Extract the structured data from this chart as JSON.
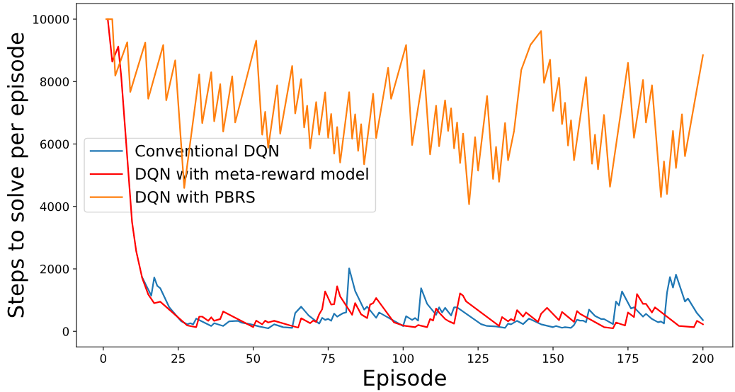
{
  "chart_data": {
    "type": "line",
    "xlabel": "Episode",
    "ylabel": "Steps to solve per episode",
    "xlim": [
      -8.95,
      209.95
    ],
    "ylim": [
      -500,
      10500
    ],
    "xticks": [
      0,
      25,
      50,
      75,
      100,
      125,
      150,
      175,
      200
    ],
    "yticks": [
      0,
      2000,
      4000,
      6000,
      8000,
      10000
    ],
    "grid": false,
    "legend": "left",
    "marker": "none",
    "line_style": "solid",
    "series": [
      {
        "name": "Conventional DQN",
        "color": "#1f77b4",
        "x": [
          13,
          16,
          17,
          18,
          19,
          22,
          26,
          28,
          29,
          30,
          31,
          36,
          37,
          40,
          42,
          45,
          46,
          49,
          52,
          55,
          57,
          60,
          63,
          64,
          66,
          68.5,
          72,
          73,
          74,
          75,
          76,
          77,
          78,
          80,
          81,
          82,
          84,
          87,
          88,
          91,
          92,
          100,
          101,
          103,
          104,
          105,
          106,
          108,
          111,
          112,
          113,
          114,
          116,
          117,
          118,
          126,
          128,
          131,
          134,
          135,
          136,
          138,
          140,
          142,
          146,
          150,
          151,
          153,
          154,
          156,
          157,
          158,
          159,
          160,
          161,
          162,
          164,
          166,
          167,
          170,
          171,
          172,
          173,
          176,
          177,
          180,
          181,
          183,
          185,
          186,
          187,
          188,
          189,
          190,
          191,
          194,
          195,
          198,
          200
        ],
        "values": [
          1725,
          1142,
          1725,
          1456,
          1380,
          768,
          320,
          224,
          260,
          224,
          410,
          170,
          260,
          170,
          320,
          336,
          282,
          230,
          157,
          96,
          224,
          134,
          112,
          582,
          790,
          506,
          246,
          432,
          365,
          400,
          336,
          567,
          470,
          582,
          605,
          2016,
          1290,
          694,
          790,
          432,
          603,
          170,
          484,
          365,
          425,
          343,
          1380,
          880,
          529,
          768,
          605,
          753,
          506,
          768,
          768,
          230,
          170,
          157,
          112,
          246,
          224,
          336,
          230,
          410,
          224,
          134,
          170,
          112,
          134,
          112,
          202,
          372,
          343,
          343,
          291,
          694,
          494,
          394,
          394,
          230,
          955,
          830,
          1277,
          730,
          768,
          470,
          560,
          394,
          291,
          314,
          253,
          1232,
          1738,
          1400,
          1814,
          955,
          1050,
          582,
          358
        ]
      },
      {
        "name": "DQN with meta-reward model",
        "color": "#ff0000",
        "x": [
          1.5,
          3,
          5,
          6,
          9.6,
          11,
          13,
          15,
          17,
          19,
          28,
          31,
          32,
          33,
          35,
          36,
          37,
          39,
          40,
          50,
          51,
          53,
          54,
          55,
          57,
          63,
          65,
          66,
          69,
          70,
          71,
          72,
          73,
          74,
          76,
          77,
          78,
          79,
          83,
          84,
          86,
          88,
          89,
          90,
          91,
          97,
          100,
          104,
          105,
          108,
          109,
          110,
          111,
          112,
          114,
          115,
          117,
          119,
          120,
          121,
          132,
          133,
          135,
          136,
          137,
          138,
          140,
          141,
          145,
          146,
          148,
          152,
          153,
          157,
          158,
          159,
          167,
          170,
          171,
          174,
          175,
          177,
          178,
          180,
          181,
          183,
          184,
          192,
          197,
          198,
          200
        ],
        "values": [
          10000,
          8640,
          9120,
          8150,
          3500,
          2560,
          1700,
          1180,
          900,
          950,
          186,
          134,
          470,
          470,
          336,
          448,
          336,
          394,
          634,
          134,
          343,
          224,
          343,
          282,
          336,
          170,
          119,
          417,
          260,
          343,
          300,
          544,
          708,
          1277,
          858,
          870,
          1440,
          1120,
          530,
          903,
          544,
          425,
          858,
          903,
          1066,
          282,
          186,
          134,
          202,
          134,
          394,
          343,
          730,
          603,
          394,
          336,
          246,
          1216,
          1140,
          960,
          170,
          455,
          320,
          394,
          336,
          679,
          470,
          605,
          305,
          560,
          753,
          358,
          618,
          305,
          650,
          560,
          134,
          96,
          282,
          186,
          605,
          455,
          1194,
          880,
          880,
          605,
          768,
          170,
          134,
          336,
          224
        ]
      },
      {
        "name": "DQN with PBRS",
        "color": "#ff7f0e",
        "x": [
          1,
          3,
          4,
          8,
          9,
          14,
          15,
          20,
          21,
          24,
          27,
          32,
          33,
          36,
          37,
          39,
          40,
          43,
          44,
          51,
          53,
          54,
          55,
          58,
          59,
          63,
          64,
          66,
          67,
          68,
          69,
          71,
          72,
          74,
          75,
          76,
          77,
          78,
          79,
          82,
          83,
          84,
          85,
          86,
          87,
          90,
          91,
          95,
          96,
          101,
          103,
          107,
          109,
          111,
          112,
          114,
          115,
          116,
          117,
          118,
          119,
          120,
          122,
          124,
          125,
          128,
          130,
          131,
          132,
          134,
          135,
          137,
          139.4,
          142.5,
          146,
          147,
          149,
          150,
          152,
          153,
          154,
          155,
          156,
          157,
          161,
          163,
          164,
          165,
          167,
          169,
          175,
          177,
          180,
          181,
          183,
          186,
          187,
          188,
          190,
          191,
          193,
          194,
          200
        ],
        "values": [
          10000,
          10000,
          8190,
          9260,
          7670,
          9250,
          7450,
          9170,
          7400,
          8680,
          4590,
          8230,
          6670,
          8300,
          6730,
          7920,
          6400,
          8170,
          6690,
          9310,
          6300,
          7030,
          5880,
          7880,
          6330,
          8500,
          6980,
          8080,
          6530,
          7230,
          5860,
          7340,
          6300,
          7650,
          6200,
          6960,
          5690,
          6540,
          5410,
          7660,
          6170,
          6950,
          5780,
          6630,
          5350,
          7610,
          6190,
          8440,
          7450,
          9170,
          5970,
          8360,
          5670,
          7230,
          5930,
          7400,
          6420,
          7140,
          5860,
          6690,
          5390,
          6330,
          4070,
          6220,
          5150,
          7540,
          4880,
          5910,
          4790,
          6670,
          5480,
          6420,
          8370,
          9180,
          9620,
          7960,
          8700,
          7060,
          8120,
          6640,
          7320,
          5950,
          6760,
          5480,
          8140,
          5370,
          6300,
          5190,
          6930,
          4630,
          8600,
          6200,
          8050,
          6690,
          7880,
          4300,
          5440,
          4400,
          6420,
          5230,
          6950,
          5610,
          8850
        ]
      }
    ]
  }
}
